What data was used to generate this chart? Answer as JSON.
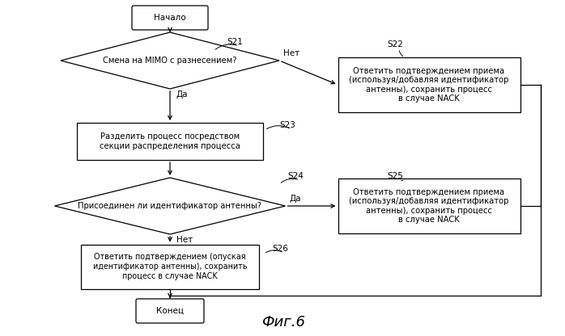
{
  "bg_color": "#ffffff",
  "title": "Фиг.6",
  "title_fontsize": 13,
  "nodes": {
    "start_text": "Начало",
    "s21_text": "Смена на MIMO с разнесением?",
    "s23_text": "Разделить процесс посредством\nсекции распределения процесса",
    "s24_text": "Присоединен ли идентификатор антенны?",
    "s26_text": "Ответить подтверждением (опуская\nидентификатор антенны), сохранить\nпроцесс в случае NACK",
    "s22_text": "Ответить подтверждением приема\n(используя/добавляя идентификатор\nантенны), сохранить процесс\nв случае NACK",
    "s25_text": "Ответить подтверждением приема\n(используя/добавляя идентификатор\nантенны), сохранить процесс\nв случае NACK",
    "end_text": "Конец"
  },
  "yes": "Да",
  "no": "Нет",
  "step_labels": [
    "S21",
    "S22",
    "S23",
    "S24",
    "S25",
    "S26"
  ]
}
